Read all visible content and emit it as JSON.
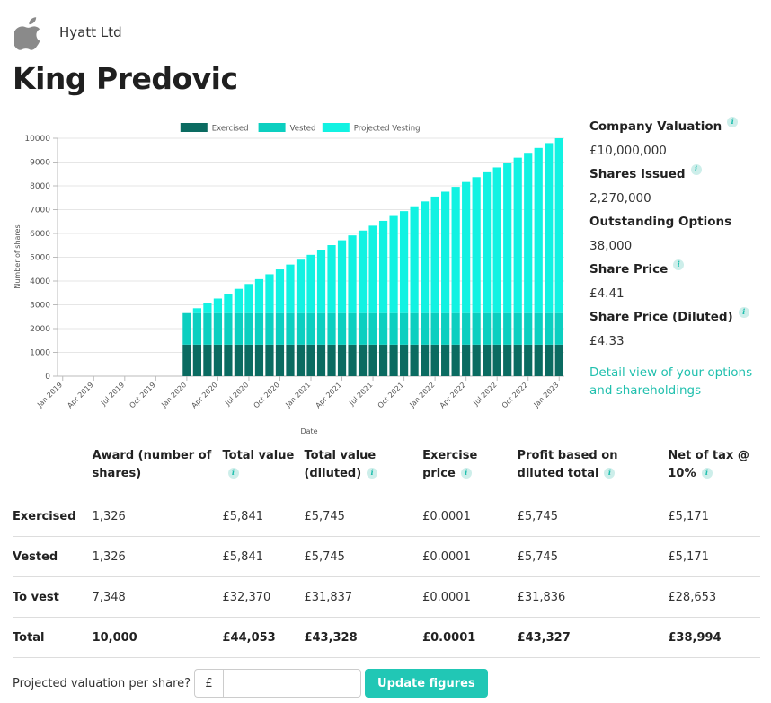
{
  "header": {
    "company": "Hyatt Ltd",
    "logo_icon": "apple-icon"
  },
  "page_title": "King Predovic",
  "chart_data": {
    "type": "bar",
    "stacked": true,
    "legend_position": "top",
    "xlabel": "Date",
    "ylabel": "Number of shares",
    "ylim": [
      0,
      10000
    ],
    "yticks": [
      0,
      1000,
      2000,
      3000,
      4000,
      5000,
      6000,
      7000,
      8000,
      9000,
      10000
    ],
    "xticks": [
      "Jan 2019",
      "Apr 2019",
      "Jul 2019",
      "Oct 2019",
      "Jan 2020",
      "Apr 2020",
      "Jul 2020",
      "Oct 2020",
      "Jan 2021",
      "Apr 2021",
      "Jul 2021",
      "Oct 2021",
      "Jan 2022",
      "Apr 2022",
      "Jul 2022",
      "Oct 2022",
      "Jan 2023"
    ],
    "months": [
      "Jan 2019",
      "Feb 2019",
      "Mar 2019",
      "Apr 2019",
      "May 2019",
      "Jun 2019",
      "Jul 2019",
      "Aug 2019",
      "Sep 2019",
      "Oct 2019",
      "Nov 2019",
      "Dec 2019",
      "Jan 2020",
      "Feb 2020",
      "Mar 2020",
      "Apr 2020",
      "May 2020",
      "Jun 2020",
      "Jul 2020",
      "Aug 2020",
      "Sep 2020",
      "Oct 2020",
      "Nov 2020",
      "Dec 2020",
      "Jan 2021",
      "Feb 2021",
      "Mar 2021",
      "Apr 2021",
      "May 2021",
      "Jun 2021",
      "Jul 2021",
      "Aug 2021",
      "Sep 2021",
      "Oct 2021",
      "Nov 2021",
      "Dec 2021",
      "Jan 2022",
      "Feb 2022",
      "Mar 2022",
      "Apr 2022",
      "May 2022",
      "Jun 2022",
      "Jul 2022",
      "Aug 2022",
      "Sep 2022",
      "Oct 2022",
      "Nov 2022",
      "Dec 2022",
      "Jan 2023"
    ],
    "series": [
      {
        "name": "Exercised",
        "color": "#0b6b61",
        "values": [
          0,
          0,
          0,
          0,
          0,
          0,
          0,
          0,
          0,
          0,
          0,
          0,
          1326,
          1326,
          1326,
          1326,
          1326,
          1326,
          1326,
          1326,
          1326,
          1326,
          1326,
          1326,
          1326,
          1326,
          1326,
          1326,
          1326,
          1326,
          1326,
          1326,
          1326,
          1326,
          1326,
          1326,
          1326,
          1326,
          1326,
          1326,
          1326,
          1326,
          1326,
          1326,
          1326,
          1326,
          1326,
          1326,
          1326
        ]
      },
      {
        "name": "Vested",
        "color": "#0ccfc0",
        "values": [
          0,
          0,
          0,
          0,
          0,
          0,
          0,
          0,
          0,
          0,
          0,
          0,
          1326,
          1326,
          1326,
          1326,
          1326,
          1326,
          1326,
          1326,
          1326,
          1326,
          1326,
          1326,
          1326,
          1326,
          1326,
          1326,
          1326,
          1326,
          1326,
          1326,
          1326,
          1326,
          1326,
          1326,
          1326,
          1326,
          1326,
          1326,
          1326,
          1326,
          1326,
          1326,
          1326,
          1326,
          1326,
          1326,
          1326
        ]
      },
      {
        "name": "Projected Vesting",
        "color": "#12f2e2",
        "values": [
          0,
          0,
          0,
          0,
          0,
          0,
          0,
          0,
          0,
          0,
          0,
          0,
          0,
          204,
          408,
          612,
          816,
          1020,
          1224,
          1428,
          1633,
          1837,
          2041,
          2245,
          2449,
          2653,
          2857,
          3061,
          3266,
          3470,
          3674,
          3878,
          4082,
          4286,
          4490,
          4694,
          4898,
          5103,
          5307,
          5511,
          5715,
          5919,
          6123,
          6327,
          6531,
          6736,
          6940,
          7144,
          7348
        ]
      }
    ]
  },
  "stats": [
    {
      "label": "Company Valuation",
      "value": "£10,000,000",
      "info": true
    },
    {
      "label": "Shares Issued",
      "value": "2,270,000",
      "info": true
    },
    {
      "label": "Outstanding Options",
      "value": "38,000",
      "info": false
    },
    {
      "label": "Share Price",
      "value": "£4.41",
      "info": true
    },
    {
      "label": "Share Price (Diluted)",
      "value": "£4.33",
      "info": true
    }
  ],
  "detail_link": "Detail view of your options and shareholdings",
  "info_glyph": "i",
  "table": {
    "columns": [
      {
        "label": "",
        "info": false
      },
      {
        "label": "Award (number of shares)",
        "info": false
      },
      {
        "label": "Total value",
        "info": true
      },
      {
        "label": "Total value (diluted)",
        "info": true
      },
      {
        "label": "Exercise price",
        "info": true
      },
      {
        "label": "Profit based on diluted total",
        "info": true
      },
      {
        "label": "Net of tax @ 10%",
        "info": true
      }
    ],
    "rows": [
      {
        "label": "Exercised",
        "cells": [
          "1,326",
          "£5,841",
          "£5,745",
          "£0.0001",
          "£5,745",
          "£5,171"
        ]
      },
      {
        "label": "Vested",
        "cells": [
          "1,326",
          "£5,841",
          "£5,745",
          "£0.0001",
          "£5,745",
          "£5,171"
        ]
      },
      {
        "label": "To vest",
        "cells": [
          "7,348",
          "£32,370",
          "£31,837",
          "£0.0001",
          "£31,836",
          "£28,653"
        ]
      },
      {
        "label": "Total",
        "cells": [
          "10,000",
          "£44,053",
          "£43,328",
          "£0.0001",
          "£43,327",
          "£38,994"
        ],
        "total": true
      }
    ]
  },
  "projection": {
    "label": "Projected valuation per share?",
    "currency": "£",
    "value": "",
    "placeholder": "",
    "button": "Update figures"
  }
}
